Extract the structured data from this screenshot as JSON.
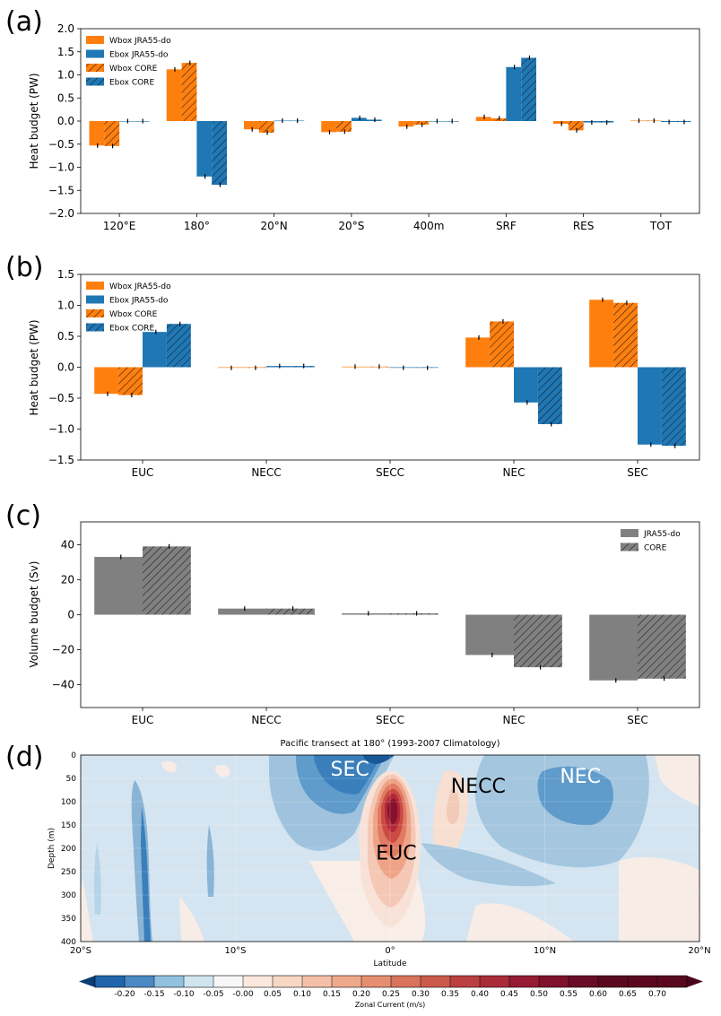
{
  "colors": {
    "wbox": "#ff7f0e",
    "ebox": "#1f77b4",
    "gray": "#808080",
    "hatch": "#1a1a1a"
  },
  "chart_data": [
    {
      "panel_label": "(a)",
      "type": "bar",
      "title": "",
      "xlabel": "",
      "ylabel": "Heat budget (PW)",
      "ylim": [
        -2.0,
        2.0
      ],
      "yticks": [
        2.0,
        1.5,
        1.0,
        0.5,
        0.0,
        -0.5,
        -1.0,
        -1.5,
        -2.0
      ],
      "ytick_labels": [
        "2.0",
        "1.5",
        "1.0",
        "0.5",
        "0.0",
        "−0.5",
        "−1.0",
        "−1.5",
        "−2.0"
      ],
      "categories": [
        "120°E",
        "180°",
        "20°N",
        "20°S",
        "400m",
        "SRF",
        "RES",
        "TOT"
      ],
      "legend_position": "top-left",
      "series": [
        {
          "name": "Wbox JRA55-do",
          "color_key": "wbox",
          "hatch": false,
          "values": [
            -0.53,
            1.12,
            -0.18,
            -0.24,
            -0.12,
            0.09,
            -0.06,
            0.01
          ]
        },
        {
          "name": "Wbox CORE",
          "color_key": "wbox",
          "hatch": true,
          "values": [
            -0.54,
            1.26,
            -0.25,
            -0.23,
            -0.08,
            0.06,
            -0.2,
            0.01
          ]
        },
        {
          "name": "Ebox JRA55-do",
          "color_key": "ebox",
          "hatch": false,
          "values": [
            0.0,
            -1.2,
            0.01,
            0.07,
            0.0,
            1.17,
            -0.03,
            -0.02
          ]
        },
        {
          "name": "Ebox CORE",
          "color_key": "ebox",
          "hatch": true,
          "values": [
            0.0,
            -1.38,
            0.01,
            0.03,
            0.0,
            1.37,
            -0.03,
            -0.02
          ]
        }
      ],
      "legend_entries": [
        "Wbox JRA55-do",
        "Ebox JRA55-do",
        "Wbox CORE",
        "Ebox CORE"
      ]
    },
    {
      "panel_label": "(b)",
      "type": "bar",
      "title": "",
      "xlabel": "",
      "ylabel": "Heat budget (PW)",
      "ylim": [
        -1.5,
        1.5
      ],
      "yticks": [
        1.5,
        1.0,
        0.5,
        0.0,
        -0.5,
        -1.0,
        -1.5
      ],
      "ytick_labels": [
        "1.5",
        "1.0",
        "0.5",
        "0.0",
        "−0.5",
        "−1.0",
        "−1.5"
      ],
      "categories": [
        "EUC",
        "NECC",
        "SECC",
        "NEC",
        "SEC"
      ],
      "legend_position": "top-left",
      "series": [
        {
          "name": "Wbox JRA55-do",
          "color_key": "wbox",
          "hatch": false,
          "values": [
            -0.43,
            -0.01,
            0.01,
            0.48,
            1.09
          ]
        },
        {
          "name": "Wbox CORE",
          "color_key": "wbox",
          "hatch": true,
          "values": [
            -0.45,
            -0.01,
            0.01,
            0.74,
            1.04
          ]
        },
        {
          "name": "Ebox JRA55-do",
          "color_key": "ebox",
          "hatch": false,
          "values": [
            0.57,
            0.02,
            -0.01,
            -0.57,
            -1.25
          ]
        },
        {
          "name": "Ebox CORE",
          "color_key": "ebox",
          "hatch": true,
          "values": [
            0.7,
            0.02,
            -0.01,
            -0.92,
            -1.27
          ]
        }
      ],
      "legend_entries": [
        "Wbox JRA55-do",
        "Ebox JRA55-do",
        "Wbox CORE",
        "Ebox CORE"
      ]
    },
    {
      "panel_label": "(c)",
      "type": "bar",
      "title": "",
      "xlabel": "",
      "ylabel": "Volume budget (Sv)",
      "ylim": [
        -53,
        53
      ],
      "yticks": [
        40,
        20,
        0,
        -20,
        -40
      ],
      "ytick_labels": [
        "40",
        "20",
        "0",
        "−20",
        "−40"
      ],
      "categories": [
        "EUC",
        "NECC",
        "SECC",
        "NEC",
        "SEC"
      ],
      "legend_position": "top-right",
      "series": [
        {
          "name": "JRA55-do",
          "color_key": "gray",
          "hatch": false,
          "values": [
            33,
            3.5,
            0.8,
            -23,
            -37.5
          ]
        },
        {
          "name": "CORE",
          "color_key": "gray",
          "hatch": true,
          "values": [
            39,
            3.5,
            0.8,
            -30,
            -36.5
          ]
        }
      ],
      "legend_entries": [
        "JRA55-do",
        "CORE"
      ]
    },
    {
      "panel_label": "(d)",
      "type": "heatmap",
      "title": "Pacific transect at 180° (1993-2007 Climatology)",
      "xlabel": "Latitude",
      "ylabel": "Depth (m)",
      "xlim": [
        -20,
        20
      ],
      "ylim": [
        0,
        400
      ],
      "xtick_labels": [
        "20°S",
        "10°S",
        "0°",
        "10°N",
        "20°N"
      ],
      "yticks": [
        0,
        50,
        100,
        150,
        200,
        250,
        300,
        350,
        400
      ],
      "colorbar_label": "Zonal Current (m/s)",
      "colorbar_ticks": [
        "-0.20",
        "-0.15",
        "-0.10",
        "-0.05",
        "-0.00",
        "0.05",
        "0.10",
        "0.15",
        "0.20",
        "0.25",
        "0.30",
        "0.35",
        "0.40",
        "0.45",
        "0.50",
        "0.55",
        "0.60",
        "0.65",
        "0.70"
      ],
      "annotations": [
        "SEC",
        "NECC",
        "NEC",
        "EUC"
      ],
      "features": [
        {
          "name": "EUC",
          "lat_center": 0.3,
          "depth_center": 140,
          "max_speed": 0.7
        },
        {
          "name": "SEC",
          "lat_center": -2.5,
          "depth_center": 60,
          "min_speed": -0.2
        },
        {
          "name": "NEC",
          "lat_center": 11,
          "depth_center": 120,
          "min_speed": -0.15
        },
        {
          "name": "NECC",
          "lat_center": 5,
          "depth_center": 100,
          "max_speed": 0.1
        }
      ]
    }
  ]
}
